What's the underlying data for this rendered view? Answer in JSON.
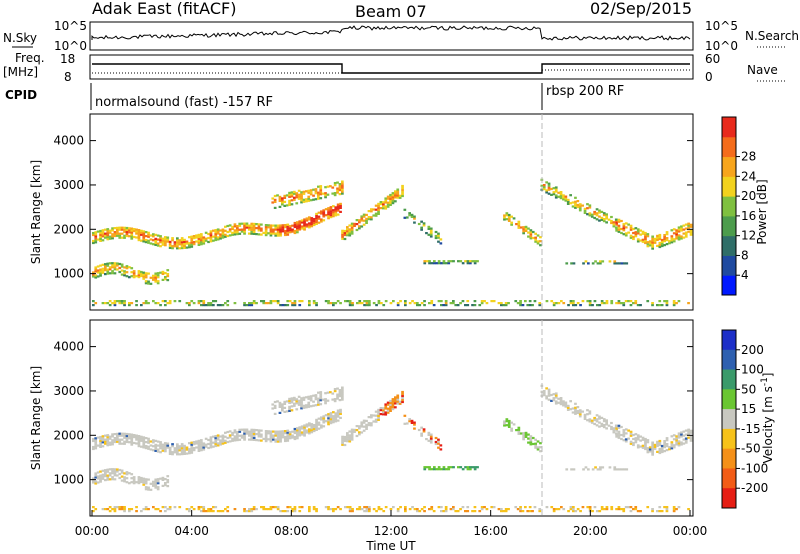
{
  "header": {
    "station": "Adak East (fitACF)",
    "beam": "Beam 07",
    "date": "02/Sep/2015"
  },
  "top_panels": {
    "nsky": {
      "label": "N.Sky",
      "ticks": [
        "10^5",
        "10^0"
      ]
    },
    "nsearch": {
      "label": "N.Search",
      "ticks": [
        "10^5",
        "10^0"
      ]
    },
    "freq": {
      "label_line1": "Freq.",
      "label_line2": "[MHz]",
      "ticks": [
        "18",
        "8"
      ]
    },
    "nave": {
      "label": "Nave",
      "ticks": [
        "60",
        "0"
      ]
    },
    "cpid": {
      "label": "CPID",
      "segments": [
        "normalsound (fast) -157 RF",
        "rbsp 200 RF"
      ]
    }
  },
  "chart_data": [
    {
      "type": "heatmap",
      "panel": "power",
      "ylabel": "Slant Range [km]",
      "xlabel": "",
      "ylim": [
        180,
        4600
      ],
      "yticks": [
        1000,
        2000,
        3000,
        4000
      ],
      "colorbar": {
        "label": "Power [dB]",
        "ticks": [
          "4",
          "8",
          "12",
          "16",
          "20",
          "24",
          "28"
        ],
        "colors": [
          "#0019ff",
          "#1f4aa0",
          "#2f6e68",
          "#4c9c4c",
          "#7fc040",
          "#f2d21e",
          "#f7a51c",
          "#f46c1b",
          "#e82a1c"
        ]
      }
    },
    {
      "type": "heatmap",
      "panel": "velocity",
      "ylabel": "Slant Range [km]",
      "xlabel": "Time UT",
      "ylim": [
        180,
        4600
      ],
      "yticks": [
        1000,
        2000,
        3000,
        4000
      ],
      "xticks": [
        "00:00",
        "04:00",
        "08:00",
        "12:00",
        "16:00",
        "20:00",
        "00:00"
      ],
      "colorbar": {
        "label_main": "Velocity [m s",
        "label_sup": "-1",
        "label_end": "]",
        "ticks": [
          "200",
          "100",
          "50",
          "15",
          "-15",
          "-50",
          "-100",
          "-200"
        ],
        "colors": [
          "#1d2fc8",
          "#2e60b0",
          "#3a9a6a",
          "#6ac632",
          "#c8c8c0",
          "#f6c21a",
          "#f49018",
          "#f25c16",
          "#e61e14"
        ]
      }
    }
  ]
}
